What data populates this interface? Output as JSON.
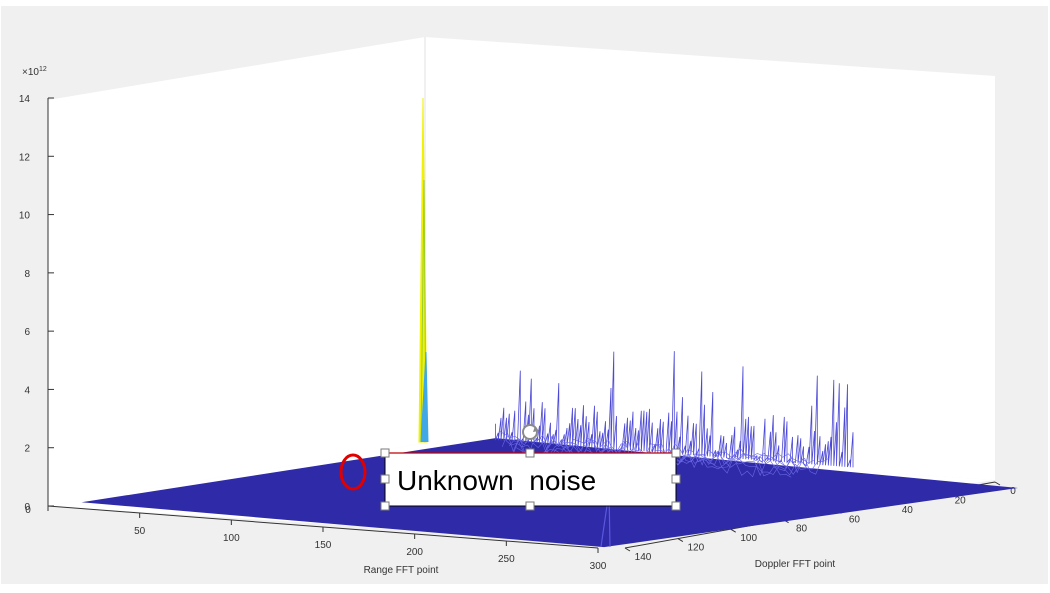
{
  "chart_data": {
    "type": "surface",
    "exponent_label": "×10",
    "exponent_power": "12",
    "z_ticks": [
      "0",
      "2",
      "4",
      "6",
      "8",
      "10",
      "12",
      "14"
    ],
    "z_tick_values": [
      0,
      2,
      4,
      6,
      8,
      10,
      12,
      14
    ],
    "zlim": [
      0,
      14
    ],
    "range_axis": {
      "label": "Range FFT point",
      "ticks": [
        "0",
        "50",
        "100",
        "150",
        "200",
        "250",
        "300"
      ],
      "values": [
        0,
        50,
        100,
        150,
        200,
        250,
        300
      ],
      "lim": [
        0,
        300
      ]
    },
    "doppler_axis": {
      "label": "Doppler FFT point",
      "ticks": [
        "0",
        "20",
        "40",
        "60",
        "80",
        "100",
        "120",
        "140"
      ],
      "values": [
        0,
        20,
        40,
        60,
        80,
        100,
        120,
        140
      ],
      "lim": [
        0,
        140
      ]
    },
    "peak": {
      "range": 195,
      "doppler": 118,
      "value": 14.0
    },
    "annotation": {
      "text": "Unknown  noise"
    },
    "colors": {
      "surface": "#2e2aa8",
      "wire": "#4b48d6",
      "peak": "#f2f200",
      "peak_mid": "#41a8e6",
      "marker": "#e00000"
    }
  }
}
